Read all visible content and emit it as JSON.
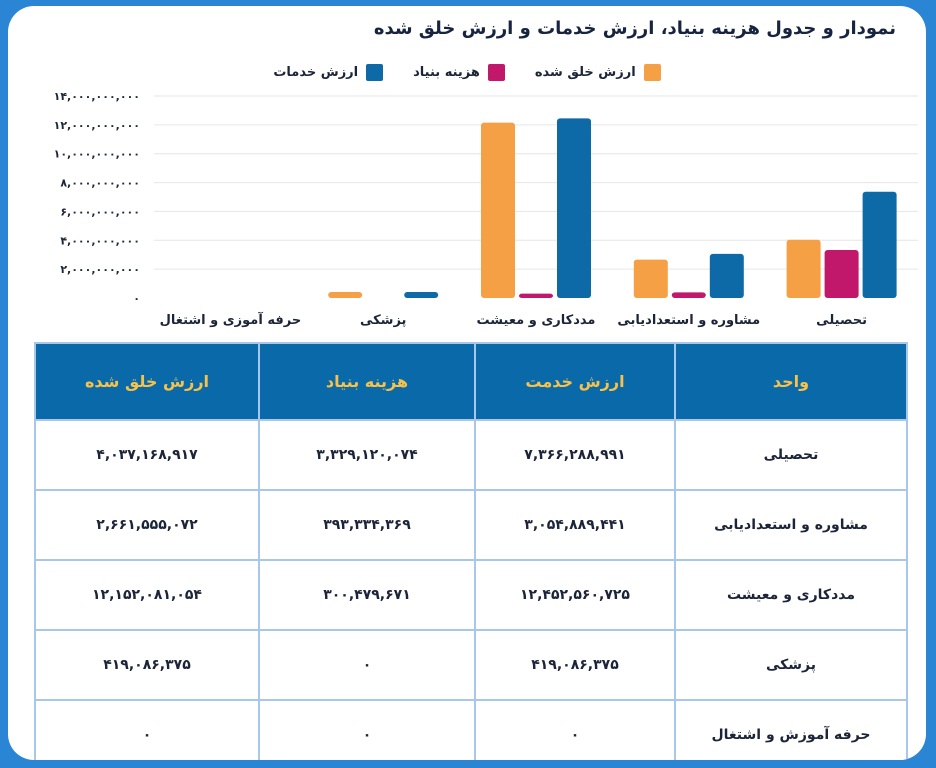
{
  "title": "نمودار و جدول هزینه بنیاد، ارزش خدمات و ارزش خلق شده",
  "legend": [
    {
      "label": "ارزش خدمات",
      "color": "#0e6aa6"
    },
    {
      "label": "هزینه بنیاد",
      "color": "#c2186b"
    },
    {
      "label": "ارزش خلق شده",
      "color": "#f6a045"
    }
  ],
  "chart_data": {
    "type": "bar",
    "categories": [
      "تحصیلی",
      "مشاوره و استعدادیابی",
      "مددکاری و معیشت",
      "پزشکی",
      "حرفه آموزی و اشتغال"
    ],
    "series": [
      {
        "name": "ارزش خدمات",
        "color": "#0e6aa6",
        "values": [
          7366288991,
          3054889441,
          12452560725,
          419086375,
          0
        ]
      },
      {
        "name": "هزینه بنیاد",
        "color": "#c2186b",
        "values": [
          3329120074,
          393334369,
          300479671,
          0,
          0
        ]
      },
      {
        "name": "ارزش خلق شده",
        "color": "#f6a045",
        "values": [
          4037168917,
          2661555072,
          12152081054,
          419086375,
          0
        ]
      }
    ],
    "ylim": [
      0,
      14000000000
    ],
    "yticks": [
      "۰",
      "۲,۰۰۰,۰۰۰,۰۰۰",
      "۴,۰۰۰,۰۰۰,۰۰۰",
      "۶,۰۰۰,۰۰۰,۰۰۰",
      "۸,۰۰۰,۰۰۰,۰۰۰",
      "۱۰,۰۰۰,۰۰۰,۰۰۰",
      "۱۲,۰۰۰,۰۰۰,۰۰۰",
      "۱۴,۰۰۰,۰۰۰,۰۰۰"
    ],
    "grid": true,
    "legend_position": "top"
  },
  "table": {
    "headers": [
      "واحد",
      "ارزش خدمت",
      "هزینه بنیاد",
      "ارزش خلق شده"
    ],
    "rows": [
      [
        "تحصیلی",
        "۷,۳۶۶,۲۸۸,۹۹۱",
        "۳,۳۲۹,۱۲۰,۰۷۴",
        "۴,۰۳۷,۱۶۸,۹۱۷"
      ],
      [
        "مشاوره و استعدادیابی",
        "۳,۰۵۴,۸۸۹,۴۴۱",
        "۳۹۳,۳۳۴,۳۶۹",
        "۲,۶۶۱,۵۵۵,۰۷۲"
      ],
      [
        "مددکاری و معیشت",
        "۱۲,۴۵۲,۵۶۰,۷۲۵",
        "۳۰۰,۴۷۹,۶۷۱",
        "۱۲,۱۵۲,۰۸۱,۰۵۴"
      ],
      [
        "پزشکی",
        "۴۱۹,۰۸۶,۳۷۵",
        "۰",
        "۴۱۹,۰۸۶,۳۷۵"
      ],
      [
        "حرفه آموزش و اشتغال",
        "۰",
        "۰",
        "۰"
      ]
    ]
  }
}
